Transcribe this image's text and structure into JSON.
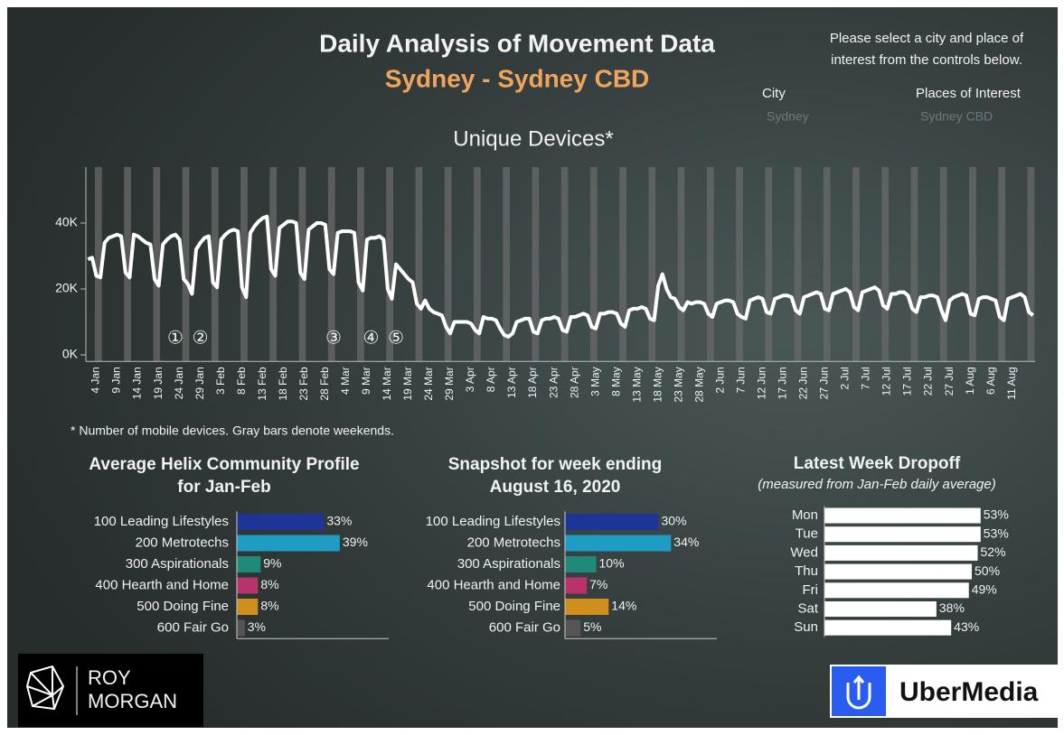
{
  "header": {
    "title": "Daily Analysis of Movement Data",
    "subtitle": "Sydney - Sydney CBD",
    "instructions": [
      "Please select a city and place of",
      "interest from the controls below."
    ],
    "controls": [
      {
        "label": "City",
        "value": "Sydney"
      },
      {
        "label": "Places of Interest",
        "value": "Sydney CBD"
      }
    ]
  },
  "chart_data": [
    {
      "type": "line",
      "title": "Unique Devices*",
      "color": "#ffffff",
      "ylim": [
        -2000,
        57000
      ],
      "yticks": [
        {
          "value": 0,
          "label": "0K"
        },
        {
          "value": 20000,
          "label": "20K"
        },
        {
          "value": 40000,
          "label": "40K"
        }
      ],
      "annotations": [
        "①",
        "②",
        "③",
        "④",
        "⑤"
      ],
      "categories": [
        null,
        null,
        "4 Jan",
        null,
        null,
        null,
        null,
        "9 Jan",
        null,
        null,
        null,
        null,
        "14 Jan",
        null,
        null,
        null,
        null,
        "19 Jan",
        null,
        null,
        null,
        null,
        "24 Jan",
        null,
        null,
        null,
        null,
        "29 Jan",
        null,
        null,
        null,
        null,
        "3 Feb",
        null,
        null,
        null,
        null,
        "8 Feb",
        null,
        null,
        null,
        null,
        "13 Feb",
        null,
        null,
        null,
        null,
        "18 Feb",
        null,
        null,
        null,
        null,
        "23 Feb",
        null,
        null,
        null,
        null,
        "28 Feb",
        null,
        null,
        null,
        null,
        "4 Mar",
        null,
        null,
        null,
        null,
        "9 Mar",
        null,
        null,
        null,
        null,
        "14 Mar",
        null,
        null,
        null,
        null,
        "19 Mar",
        null,
        null,
        null,
        null,
        "24 Mar",
        null,
        null,
        null,
        null,
        "29 Mar",
        null,
        null,
        null,
        null,
        "3 Apr",
        null,
        null,
        null,
        null,
        "8 Apr",
        null,
        null,
        null,
        null,
        "13 Apr",
        null,
        null,
        null,
        null,
        "18 Apr",
        null,
        null,
        null,
        null,
        "23 Apr",
        null,
        null,
        null,
        null,
        "28 Apr",
        null,
        null,
        null,
        null,
        "3 May",
        null,
        null,
        null,
        null,
        "8 May",
        null,
        null,
        null,
        null,
        "13 May",
        null,
        null,
        null,
        null,
        "18 May",
        null,
        null,
        null,
        null,
        "23 May",
        null,
        null,
        null,
        null,
        "28 May",
        null,
        null,
        null,
        null,
        "2 Jun",
        null,
        null,
        null,
        null,
        "7 Jun",
        null,
        null,
        null,
        null,
        "12 Jun",
        null,
        null,
        null,
        null,
        "17 Jun",
        null,
        null,
        null,
        null,
        "22 Jun",
        null,
        null,
        null,
        null,
        "27 Jun",
        null,
        null,
        null,
        null,
        "2 Jul",
        null,
        null,
        null,
        null,
        "7 Jul",
        null,
        null,
        null,
        null,
        "12 Jul",
        null,
        null,
        null,
        null,
        "17 Jul",
        null,
        null,
        null,
        null,
        "22 Jul",
        null,
        null,
        null,
        null,
        "27 Jul",
        null,
        null,
        null,
        null,
        "1 Aug",
        null,
        null,
        null,
        null,
        "6 Aug",
        null,
        null,
        null,
        null,
        "11 Aug",
        null,
        null,
        null,
        null,
        null
      ],
      "values": [
        29000,
        29500,
        24000,
        23500,
        34000,
        35500,
        36000,
        36500,
        36000,
        25000,
        23500,
        36500,
        36000,
        35000,
        34000,
        33500,
        23000,
        21000,
        33500,
        35000,
        36000,
        36500,
        35000,
        23000,
        21500,
        18500,
        32000,
        34000,
        35500,
        36000,
        22000,
        20500,
        35000,
        36500,
        37500,
        38000,
        37500,
        20500,
        17500,
        37000,
        39000,
        40500,
        41500,
        42000,
        26000,
        24000,
        38500,
        39500,
        40500,
        40500,
        40000,
        25000,
        23000,
        38000,
        39000,
        40000,
        40000,
        39500,
        26000,
        24500,
        37000,
        37500,
        37500,
        37500,
        37000,
        22000,
        19500,
        35000,
        35500,
        35500,
        36000,
        35000,
        20000,
        17000,
        27500,
        26000,
        24500,
        23000,
        22000,
        15500,
        14000,
        16500,
        14000,
        13000,
        12500,
        12000,
        8500,
        6500,
        10000,
        10000,
        10000,
        10000,
        9500,
        7500,
        6500,
        11500,
        11000,
        11000,
        10500,
        8000,
        6000,
        5500,
        6500,
        10000,
        10500,
        11000,
        11000,
        7000,
        6500,
        10500,
        11000,
        11000,
        11500,
        11000,
        7500,
        7000,
        11500,
        11500,
        12000,
        12500,
        12000,
        8500,
        8000,
        12500,
        12500,
        13000,
        13000,
        12500,
        9500,
        8500,
        13500,
        14000,
        14000,
        14500,
        14000,
        11000,
        10500,
        21000,
        24500,
        20000,
        17500,
        17000,
        14500,
        13500,
        16000,
        15500,
        16000,
        16000,
        15500,
        12500,
        11500,
        15500,
        16000,
        16500,
        16500,
        16000,
        12500,
        11500,
        11000,
        16500,
        17000,
        17500,
        17000,
        13000,
        12500,
        17000,
        17500,
        18000,
        18000,
        17500,
        13500,
        12500,
        17500,
        18000,
        18500,
        19000,
        18500,
        14000,
        13500,
        18500,
        19000,
        19500,
        20000,
        19000,
        14500,
        13500,
        19000,
        19500,
        20000,
        20500,
        19500,
        15000,
        14000,
        18500,
        18500,
        19000,
        19000,
        18000,
        14000,
        13000,
        17500,
        17500,
        18000,
        18000,
        17500,
        13500,
        10500,
        16500,
        17500,
        18000,
        18500,
        18000,
        12500,
        12000,
        17000,
        17500,
        17500,
        17000,
        16500,
        11500,
        10500,
        17000,
        17500,
        18000,
        18500,
        17500,
        13000,
        12000
      ]
    },
    {
      "type": "bar",
      "title": [
        "Average Helix Community Profile",
        "for Jan-Feb"
      ],
      "categories": [
        "100 Leading Lifestyles",
        "200 Metrotechs",
        "300 Aspirationals",
        "400 Hearth and Home",
        "500 Doing Fine",
        "600 Fair Go"
      ],
      "values": [
        33,
        39,
        9,
        8,
        8,
        3
      ],
      "value_labels": [
        "33%",
        "39%",
        "9%",
        "8%",
        "8%",
        "3%"
      ],
      "colors": [
        "#1c3596",
        "#1e9cc4",
        "#1f8a78",
        "#b8326c",
        "#d08e1c",
        "#555555"
      ]
    },
    {
      "type": "bar",
      "title": [
        "Snapshot for week ending",
        "August 16, 2020"
      ],
      "categories": [
        "100 Leading Lifestyles",
        "200 Metrotechs",
        "300 Aspirationals",
        "400 Hearth and Home",
        "500 Doing Fine",
        "600 Fair Go"
      ],
      "values": [
        30,
        34,
        10,
        7,
        14,
        5
      ],
      "value_labels": [
        "30%",
        "34%",
        "10%",
        "7%",
        "14%",
        "5%"
      ],
      "colors": [
        "#1c3596",
        "#1e9cc4",
        "#1f8a78",
        "#b8326c",
        "#d08e1c",
        "#555555"
      ]
    },
    {
      "type": "bar",
      "title": "Latest Week Dropoff",
      "subtitle": "(measured from Jan-Feb daily average)",
      "categories": [
        "Mon",
        "Tue",
        "Wed",
        "Thu",
        "Fri",
        "Sat",
        "Sun"
      ],
      "values": [
        53,
        53,
        52,
        50,
        49,
        38,
        43
      ],
      "value_labels": [
        "53%",
        "53%",
        "52%",
        "50%",
        "49%",
        "38%",
        "43%"
      ],
      "color": "#ffffff"
    }
  ],
  "footnote": "* Number of mobile devices. Gray bars denote weekends.",
  "logos": {
    "roy_morgan": [
      "ROY",
      "MORGAN"
    ],
    "ubermedia": "UberMedia"
  }
}
